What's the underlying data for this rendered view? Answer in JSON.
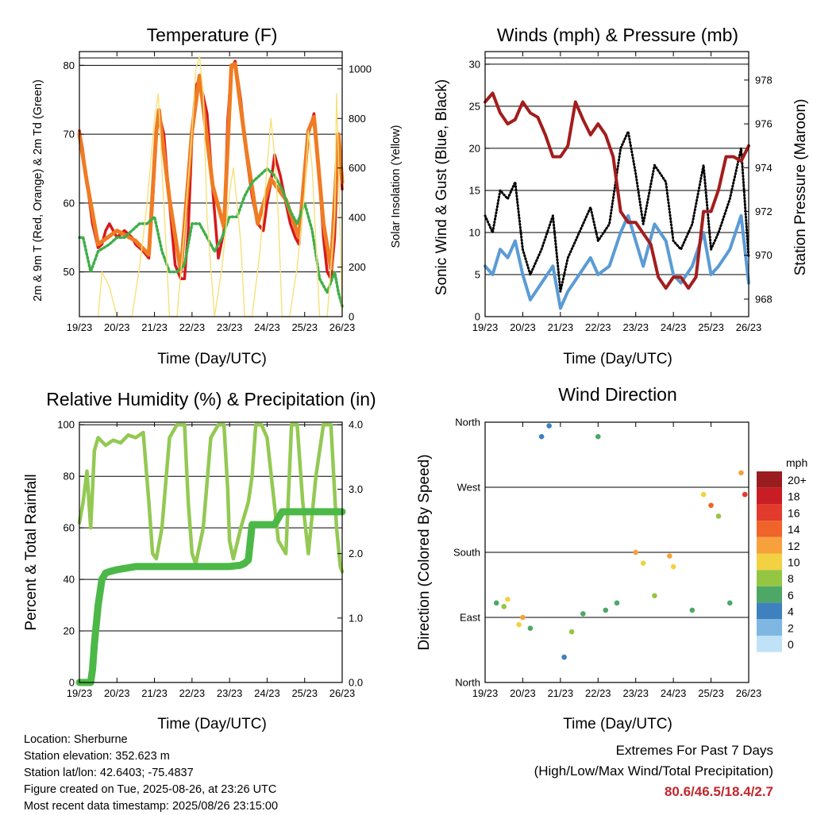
{
  "panels": {
    "temperature": {
      "title": "Temperature (F)",
      "ylabel_left": "2m & 9m T (Red, Orange) & 2m Td (Green)",
      "ylabel_right": "Solar Insolation (Yellow)",
      "xlabel": "Time (Day/UTC)"
    },
    "winds": {
      "title": "Winds (mph) & Pressure (mb)",
      "ylabel_left": "Sonic Wind & Gust (Blue, Black)",
      "ylabel_right": "Station Pressure (Maroon)",
      "xlabel": "Time (Day/UTC)"
    },
    "humidity": {
      "title": "Relative Humidity (%) & Precipitation (in)",
      "ylabel_left": "Percent & Total Rainfall",
      "xlabel": "Time (Day/UTC)"
    },
    "direction": {
      "title": "Wind Direction",
      "ylabel_left": "Direction (Colored By Speed)",
      "xlabel": "Time (Day/UTC)",
      "legend_title": "mph"
    }
  },
  "info": {
    "location": "Location: Sherburne",
    "elevation": "Station elevation: 352.623 m",
    "latlon": "Station lat/lon: 42.6403; -75.4837",
    "created": "Figure created on Tue, 2025-08-26, at 23:26 UTC",
    "recent": "Most recent data timestamp: 2025/08/26 23:15:00"
  },
  "extremes": {
    "line1": "Extremes For Past 7 Days",
    "line2": "(High/Low/Max Wind/Total Precipitation)",
    "values": "80.6/46.5/18.4/2.7"
  },
  "colors": {
    "temp2m": "#d7191c",
    "temp9m": "#f07b22",
    "dewpoint": "#3fae49",
    "solar": "#f7e07a",
    "wind": "#5b9bd5",
    "gust": "#000000",
    "pressure": "#a31d1d",
    "rh": "#93c953",
    "precip": "#4cb848"
  },
  "chart_data": [
    {
      "type": "line",
      "title": "Temperature (F)",
      "xlabel": "Time (Day/UTC)",
      "ylabel": "2m & 9m T (Red, Orange) & 2m Td (Green)",
      "y2label": "Solar Insolation (Yellow)",
      "x_ticks": [
        "19/23",
        "20/23",
        "21/23",
        "22/23",
        "23/23",
        "24/23",
        "25/23",
        "26/23"
      ],
      "y_ticks": [
        50,
        60,
        70,
        80
      ],
      "y2_ticks": [
        0,
        200,
        400,
        600,
        800,
        1000
      ],
      "ylim": [
        43.5,
        82
      ],
      "y2lim": [
        0,
        1070
      ],
      "grid": "horizontal",
      "series": [
        {
          "name": "2m T",
          "axis": "left",
          "x": [
            0,
            0.08,
            0.2,
            0.35,
            0.5,
            0.6,
            0.7,
            0.8,
            0.9,
            1.0,
            1.1,
            1.2,
            1.3,
            1.4,
            1.5,
            1.7,
            1.85,
            1.95,
            2.05,
            2.12,
            2.25,
            2.4,
            2.55,
            2.7,
            2.8,
            2.9,
            3.0,
            3.1,
            3.2,
            3.4,
            3.55,
            3.7,
            3.85,
            3.95,
            4.05,
            4.15,
            4.3,
            4.45,
            4.6,
            4.75,
            4.9,
            5.0,
            5.1,
            5.2,
            5.35,
            5.5,
            5.62,
            5.75,
            5.85,
            5.95,
            6.1,
            6.25,
            6.4,
            6.5,
            6.6,
            6.7,
            6.8,
            6.9,
            7.0
          ],
          "y": [
            70.5,
            68,
            63,
            57,
            53.5,
            54,
            56,
            57,
            56,
            55,
            55.5,
            56,
            55.5,
            55,
            54,
            53,
            52,
            60,
            70,
            73,
            70,
            60,
            51,
            49,
            49,
            56,
            70,
            77,
            78,
            73,
            62,
            52,
            56,
            72,
            79.5,
            80.6,
            75,
            67,
            61,
            57,
            56,
            60,
            63,
            67,
            64,
            60,
            57,
            55,
            54,
            62,
            70,
            73,
            63,
            55,
            50,
            49,
            55,
            70,
            62
          ]
        },
        {
          "name": "9m T",
          "axis": "left",
          "x": [
            0,
            0.2,
            0.5,
            1.0,
            1.5,
            1.85,
            2.05,
            2.12,
            2.4,
            2.7,
            3.0,
            3.2,
            3.55,
            3.85,
            4.05,
            4.15,
            4.45,
            4.75,
            5.1,
            5.5,
            5.85,
            6.1,
            6.25,
            6.5,
            6.7,
            6.9,
            7.0
          ],
          "y": [
            70,
            63,
            54,
            56,
            54.5,
            52.5,
            70.5,
            73.5,
            60.5,
            50,
            70.5,
            78.5,
            62.5,
            56.5,
            80,
            80.2,
            67.5,
            57,
            63.5,
            60.5,
            55,
            70.5,
            72.5,
            57,
            50.5,
            70,
            63
          ]
        },
        {
          "name": "2m Td",
          "axis": "left",
          "x": [
            0,
            0.1,
            0.3,
            0.5,
            0.8,
            1.0,
            1.2,
            1.4,
            1.6,
            1.8,
            2.0,
            2.2,
            2.4,
            2.6,
            2.8,
            3.0,
            3.2,
            3.4,
            3.6,
            3.8,
            4.0,
            4.2,
            4.4,
            4.6,
            4.8,
            5.0,
            5.2,
            5.4,
            5.6,
            5.8,
            6.0,
            6.2,
            6.4,
            6.6,
            6.8,
            6.9,
            7.0
          ],
          "y": [
            55,
            55,
            50,
            53,
            54,
            55,
            55,
            56,
            57,
            57,
            58,
            53,
            50,
            50,
            51,
            57,
            57,
            55,
            53,
            55,
            58,
            58,
            61,
            63,
            64,
            65,
            64,
            62,
            59,
            57,
            60,
            56,
            49,
            47,
            50,
            47,
            45
          ]
        },
        {
          "name": "Solar",
          "axis": "right",
          "x": [
            0.5,
            0.6,
            0.7,
            0.8,
            0.9,
            1.0,
            1.4,
            1.6,
            1.8,
            2.0,
            2.1,
            2.2,
            2.3,
            2.4,
            2.6,
            2.8,
            3.0,
            3.1,
            3.2,
            3.3,
            3.4,
            3.6,
            3.8,
            4.0,
            4.1,
            4.2,
            4.3,
            4.4,
            4.6,
            4.8,
            5.0,
            5.1,
            5.2,
            5.3,
            5.4,
            5.6,
            5.8,
            6.0,
            6.1,
            6.2,
            6.3,
            6.4,
            6.6,
            6.8,
            6.85,
            6.9,
            6.95,
            7.0
          ],
          "y": [
            0,
            180,
            150,
            120,
            60,
            0,
            0,
            200,
            450,
            800,
            900,
            600,
            300,
            0,
            0,
            350,
            750,
            1000,
            1050,
            900,
            400,
            0,
            200,
            500,
            600,
            450,
            300,
            0,
            0,
            250,
            600,
            800,
            650,
            400,
            0,
            0,
            200,
            500,
            750,
            600,
            300,
            0,
            0,
            400,
            900,
            650,
            300,
            0
          ]
        }
      ]
    },
    {
      "type": "line",
      "title": "Winds (mph) & Pressure (mb)",
      "xlabel": "Time (Day/UTC)",
      "ylabel": "Sonic Wind & Gust (Blue, Black)",
      "y2label": "Station Pressure (Maroon)",
      "x_ticks": [
        "19/23",
        "20/23",
        "21/23",
        "22/23",
        "23/23",
        "24/23",
        "25/23",
        "26/23"
      ],
      "y_ticks": [
        0,
        5,
        10,
        15,
        20,
        25,
        30
      ],
      "y2_ticks": [
        968,
        970,
        972,
        974,
        976,
        978
      ],
      "ylim": [
        0,
        31.5
      ],
      "y2lim": [
        967.2,
        979.3
      ],
      "grid": "horizontal",
      "series": [
        {
          "name": "Wind",
          "axis": "left",
          "x": [
            0,
            0.2,
            0.4,
            0.6,
            0.8,
            1.0,
            1.2,
            1.5,
            1.8,
            2.0,
            2.2,
            2.5,
            2.8,
            3.0,
            3.3,
            3.6,
            3.8,
            4.0,
            4.2,
            4.5,
            4.8,
            5.0,
            5.2,
            5.5,
            5.8,
            6.0,
            6.2,
            6.5,
            6.8,
            7.0
          ],
          "y": [
            6,
            5,
            8,
            7,
            9,
            5,
            2,
            4,
            6,
            1,
            3,
            5,
            7,
            5,
            6,
            10,
            12,
            9,
            6,
            11,
            9,
            5,
            4,
            6,
            10,
            5,
            6,
            8,
            12,
            4
          ]
        },
        {
          "name": "Gust",
          "axis": "left",
          "x": [
            0,
            0.2,
            0.4,
            0.6,
            0.8,
            1.0,
            1.2,
            1.5,
            1.8,
            2.0,
            2.2,
            2.5,
            2.8,
            3.0,
            3.3,
            3.6,
            3.8,
            4.0,
            4.2,
            4.5,
            4.8,
            5.0,
            5.2,
            5.5,
            5.8,
            6.0,
            6.2,
            6.5,
            6.8,
            7.0
          ],
          "y": [
            12,
            10,
            15,
            14,
            16,
            8,
            5,
            8,
            12,
            3,
            7,
            10,
            13,
            9,
            11,
            20,
            22,
            17,
            11,
            18,
            16,
            9,
            8,
            11,
            18,
            8,
            10,
            14,
            20,
            7
          ]
        },
        {
          "name": "Pressure",
          "axis": "right",
          "x": [
            0,
            0.2,
            0.4,
            0.6,
            0.8,
            1.0,
            1.2,
            1.4,
            1.6,
            1.8,
            2.0,
            2.2,
            2.4,
            2.6,
            2.8,
            3.0,
            3.2,
            3.4,
            3.6,
            3.8,
            4.0,
            4.2,
            4.4,
            4.6,
            4.8,
            5.0,
            5.2,
            5.4,
            5.6,
            5.8,
            6.0,
            6.2,
            6.4,
            6.6,
            6.8,
            7.0
          ],
          "y": [
            977,
            977.4,
            976.5,
            976,
            976.2,
            977,
            976.5,
            976.3,
            975.5,
            974.5,
            974.5,
            975,
            977,
            976.2,
            975.5,
            976,
            975.5,
            974.5,
            972,
            971.5,
            971.5,
            971,
            970.5,
            969,
            968.5,
            969,
            969,
            968.5,
            969,
            972,
            972,
            973,
            974.5,
            974.5,
            974.3,
            975
          ]
        }
      ]
    },
    {
      "type": "line",
      "title": "Relative Humidity (%) & Precipitation (in)",
      "xlabel": "Time (Day/UTC)",
      "ylabel": "Percent & Total Rainfall",
      "x_ticks": [
        "19/23",
        "20/23",
        "21/23",
        "22/23",
        "23/23",
        "24/23",
        "25/23",
        "26/23"
      ],
      "y_ticks": [
        0,
        20,
        40,
        60,
        80,
        100
      ],
      "y2_ticks": [
        "0.0",
        "1.0",
        "2.0",
        "3.0",
        "4.0"
      ],
      "ylim": [
        0,
        101
      ],
      "y2lim": [
        0,
        4.04
      ],
      "grid": "horizontal",
      "series": [
        {
          "name": "RH",
          "axis": "left",
          "x": [
            0,
            0.1,
            0.2,
            0.3,
            0.4,
            0.5,
            0.7,
            0.9,
            1.1,
            1.3,
            1.5,
            1.7,
            1.85,
            1.95,
            2.05,
            2.2,
            2.4,
            2.6,
            2.8,
            2.9,
            3.0,
            3.1,
            3.3,
            3.5,
            3.7,
            3.85,
            3.95,
            4.0,
            4.1,
            4.3,
            4.5,
            4.6,
            4.7,
            4.85,
            5.0,
            5.15,
            5.3,
            5.5,
            5.65,
            5.8,
            5.95,
            6.1,
            6.3,
            6.5,
            6.7,
            6.85,
            6.95,
            7.0
          ],
          "y": [
            62,
            70,
            82,
            60,
            90,
            95,
            92,
            94,
            93,
            96,
            95,
            97,
            70,
            50,
            48,
            60,
            95,
            100,
            100,
            70,
            50,
            46,
            60,
            95,
            100,
            100,
            75,
            55,
            48,
            60,
            70,
            80,
            100,
            100,
            95,
            75,
            55,
            50,
            100,
            100,
            70,
            50,
            80,
            100,
            100,
            60,
            45,
            43
          ]
        },
        {
          "name": "Precipitation",
          "axis": "right",
          "x": [
            0,
            0.3,
            0.35,
            0.4,
            0.5,
            0.6,
            0.7,
            0.8,
            1.0,
            1.5,
            2.0,
            3.0,
            4.0,
            4.3,
            4.4,
            4.5,
            4.6,
            4.7,
            5.0,
            5.2,
            5.4,
            6.0,
            6.5,
            7.0
          ],
          "y": [
            0,
            0,
            0.2,
            0.6,
            1.2,
            1.6,
            1.7,
            1.72,
            1.75,
            1.8,
            1.8,
            1.8,
            1.8,
            1.82,
            1.85,
            1.9,
            2.45,
            2.45,
            2.45,
            2.45,
            2.65,
            2.65,
            2.65,
            2.65
          ]
        }
      ]
    },
    {
      "type": "scatter",
      "title": "Wind Direction",
      "xlabel": "Time (Day/UTC)",
      "ylabel": "Direction (Colored By Speed)",
      "x_ticks": [
        "19/23",
        "20/23",
        "21/23",
        "22/23",
        "23/23",
        "24/23",
        "25/23",
        "26/23"
      ],
      "y_ticks": [
        "North",
        "East",
        "South",
        "West",
        "North"
      ],
      "ylim": [
        0,
        360
      ],
      "legend": {
        "title": "mph",
        "labels": [
          "20+",
          "18",
          "16",
          "14",
          "12",
          "10",
          "8",
          "6",
          "4",
          "2",
          "0"
        ],
        "colors": [
          "#9b1c1f",
          "#c81d24",
          "#e23a2c",
          "#f0632b",
          "#f7a13c",
          "#f2d142",
          "#94c644",
          "#4ea766",
          "#3f81bf",
          "#7fb7e3",
          "#bfe2f7"
        ]
      },
      "points": [
        {
          "x": 0.3,
          "y": 110,
          "s": 6
        },
        {
          "x": 0.5,
          "y": 105,
          "s": 8
        },
        {
          "x": 0.6,
          "y": 115,
          "s": 10
        },
        {
          "x": 0.9,
          "y": 80,
          "s": 9
        },
        {
          "x": 1.0,
          "y": 90,
          "s": 12
        },
        {
          "x": 1.2,
          "y": 75,
          "s": 5
        },
        {
          "x": 1.5,
          "y": 340,
          "s": 4
        },
        {
          "x": 1.7,
          "y": 355,
          "s": 3
        },
        {
          "x": 2.1,
          "y": 35,
          "s": 4
        },
        {
          "x": 2.3,
          "y": 70,
          "s": 7
        },
        {
          "x": 2.6,
          "y": 95,
          "s": 6
        },
        {
          "x": 3.0,
          "y": 340,
          "s": 5
        },
        {
          "x": 3.2,
          "y": 100,
          "s": 5
        },
        {
          "x": 3.5,
          "y": 110,
          "s": 6
        },
        {
          "x": 4.0,
          "y": 180,
          "s": 12
        },
        {
          "x": 4.2,
          "y": 165,
          "s": 10
        },
        {
          "x": 4.5,
          "y": 120,
          "s": 7
        },
        {
          "x": 4.9,
          "y": 175,
          "s": 11
        },
        {
          "x": 5.0,
          "y": 160,
          "s": 9
        },
        {
          "x": 5.5,
          "y": 100,
          "s": 6
        },
        {
          "x": 5.8,
          "y": 260,
          "s": 10
        },
        {
          "x": 6.0,
          "y": 245,
          "s": 14
        },
        {
          "x": 6.2,
          "y": 230,
          "s": 8
        },
        {
          "x": 6.5,
          "y": 110,
          "s": 5
        },
        {
          "x": 6.8,
          "y": 290,
          "s": 12
        },
        {
          "x": 6.9,
          "y": 260,
          "s": 15
        }
      ]
    }
  ]
}
